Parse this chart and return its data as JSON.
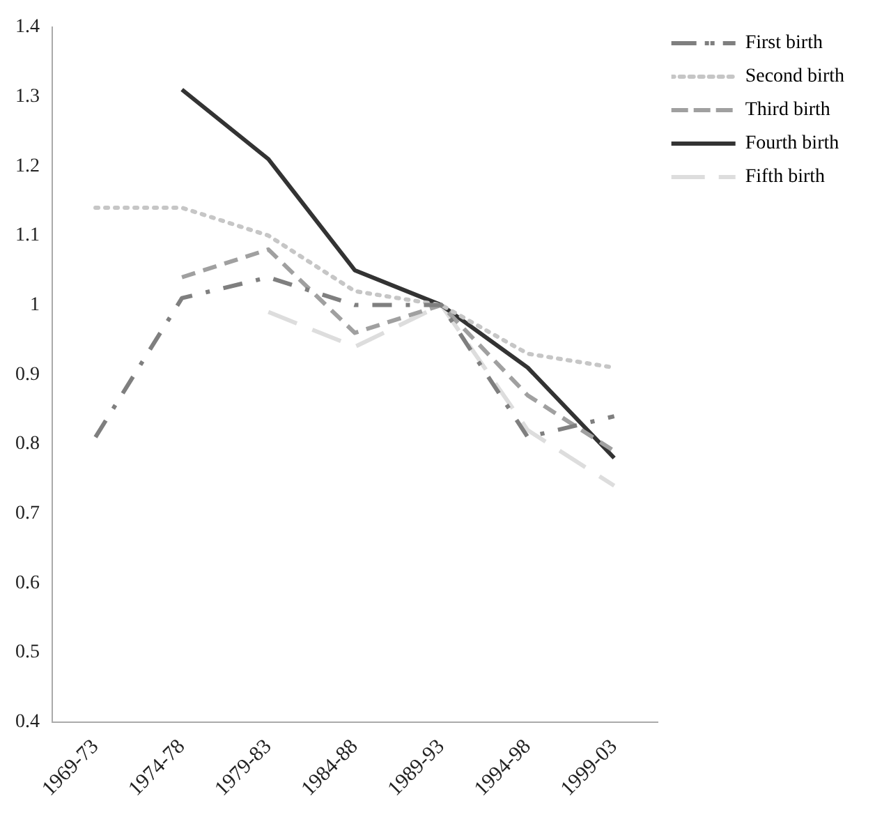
{
  "chart_data": {
    "type": "line",
    "categories": [
      "1969-73",
      "1974-78",
      "1979-83",
      "1984-88",
      "1989-93",
      "1994-98",
      "1999-03"
    ],
    "series": [
      {
        "name": "First birth",
        "color": "#7f7f7f",
        "line_style": "dashed",
        "values": [
          0.81,
          1.01,
          1.04,
          1.0,
          1.0,
          0.81,
          0.84
        ]
      },
      {
        "name": "Second birth",
        "color": "#c6c6c6",
        "line_style": "dotted",
        "values": [
          1.14,
          1.14,
          1.1,
          1.02,
          1.0,
          0.93,
          0.91
        ]
      },
      {
        "name": "Third birth",
        "color": "#a0a0a0",
        "line_style": "dashed",
        "values": [
          null,
          1.04,
          1.08,
          0.96,
          1.0,
          0.87,
          0.79
        ]
      },
      {
        "name": "Fourth birth",
        "color": "#333333",
        "line_style": "solid",
        "values": [
          null,
          1.31,
          1.21,
          1.05,
          1.0,
          0.91,
          0.78
        ]
      },
      {
        "name": "Fifth birth",
        "color": "#dddddd",
        "line_style": "dashed",
        "values": [
          null,
          null,
          0.99,
          0.94,
          1.0,
          0.82,
          0.74
        ]
      }
    ],
    "ylim": [
      0.4,
      1.4
    ],
    "yticks": [
      0.4,
      0.5,
      0.6,
      0.7,
      0.8,
      0.9,
      1,
      1.1,
      1.2,
      1.3,
      1.4
    ],
    "grid": false,
    "legend": "top right",
    "marker": "none"
  }
}
